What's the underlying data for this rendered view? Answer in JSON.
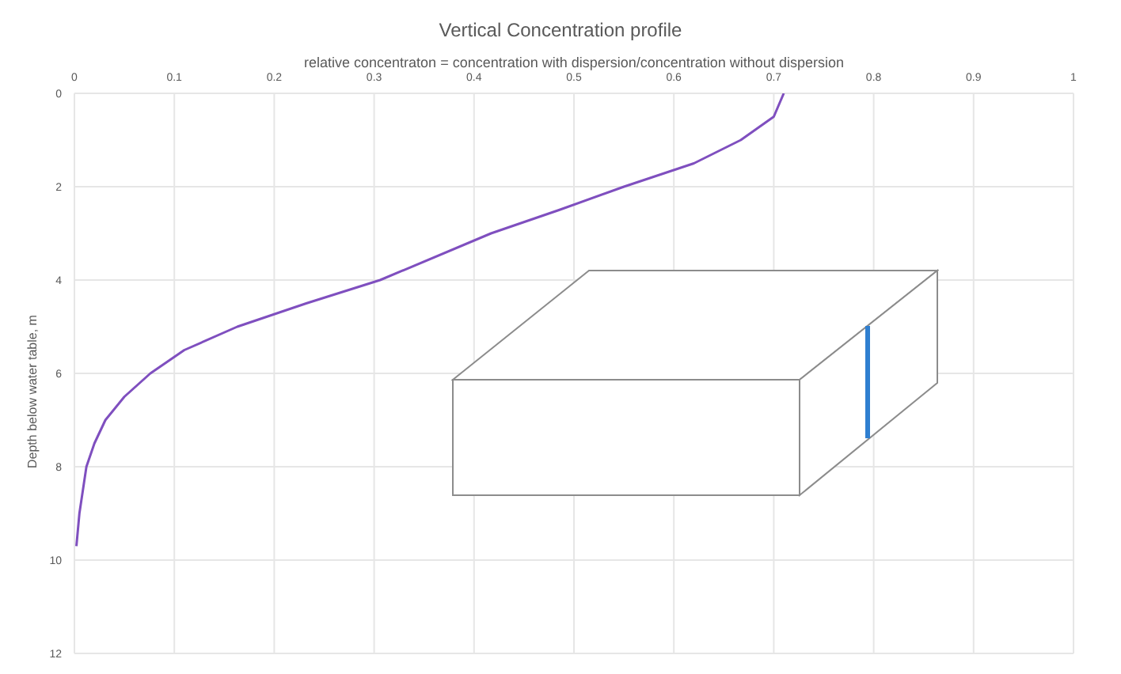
{
  "chart_data": {
    "type": "line",
    "title": "Vertical Concentration profile",
    "xlabel": "relative concentraton = concentration with dispersion/concentration without dispersion",
    "ylabel": "Depth below water table, m",
    "x": [
      0.71,
      0.7,
      0.667,
      0.62,
      0.55,
      0.485,
      0.417,
      0.306,
      0.232,
      0.163,
      0.11,
      0.076,
      0.05,
      0.031,
      0.02,
      0.012,
      0.005,
      0.002
    ],
    "series": [
      {
        "color": "#7f4fbf",
        "values": [
          0,
          0.5,
          1,
          1.5,
          2,
          2.5,
          3,
          4,
          4.5,
          5,
          5.5,
          6,
          6.5,
          7,
          7.5,
          8,
          9,
          9.7
        ]
      }
    ],
    "xlim": [
      0,
      1
    ],
    "xticks": [
      0,
      0.1,
      0.2,
      0.3,
      0.4,
      0.5,
      0.6,
      0.7,
      0.8,
      0.9,
      1
    ],
    "ylim": [
      12,
      0
    ],
    "yticks": [
      0,
      2,
      4,
      6,
      8,
      10,
      12
    ],
    "grid": true,
    "marker": "none",
    "line_style": "solid"
  }
}
